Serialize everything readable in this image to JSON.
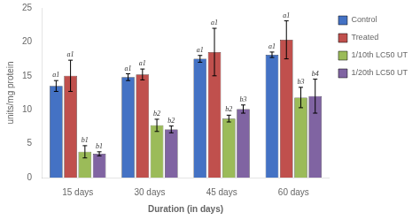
{
  "chart_data": {
    "type": "bar",
    "categories": [
      "15 days",
      "30 days",
      "45 days",
      "60 days"
    ],
    "series": [
      {
        "name": "Control",
        "color": "#4472c4",
        "values": [
          13.5,
          14.8,
          17.5,
          18.1
        ],
        "errors": [
          0.8,
          0.5,
          0.5,
          0.4
        ],
        "annotations": [
          "a1",
          "a1",
          "a1",
          "a1"
        ]
      },
      {
        "name": "Treated",
        "color": "#c0504d",
        "values": [
          15.0,
          15.2,
          18.5,
          20.3
        ],
        "errors": [
          2.3,
          0.8,
          3.5,
          2.8
        ],
        "annotations": [
          "a1",
          "a1",
          "a1",
          "a1"
        ]
      },
      {
        "name": "1/10th LC50 UT",
        "color": "#9bbb59",
        "values": [
          3.8,
          7.7,
          8.7,
          11.8
        ],
        "errors": [
          0.9,
          0.9,
          0.5,
          1.5
        ],
        "annotations": [
          "b1",
          "b2",
          "b2",
          "b3"
        ]
      },
      {
        "name": "1/20th LC50 UT",
        "color": "#8064a2",
        "values": [
          3.5,
          7.1,
          10.1,
          12.0
        ],
        "errors": [
          0.3,
          0.5,
          0.6,
          2.5
        ],
        "annotations": [
          "b1",
          "b2",
          "b3",
          "b4"
        ]
      }
    ],
    "xlabel": "Duration (in days)",
    "ylabel": "units/mg protein",
    "ylim": [
      0,
      25
    ],
    "yticks": [
      0,
      5,
      10,
      15,
      20,
      25
    ],
    "grid": false,
    "legend": "right"
  }
}
